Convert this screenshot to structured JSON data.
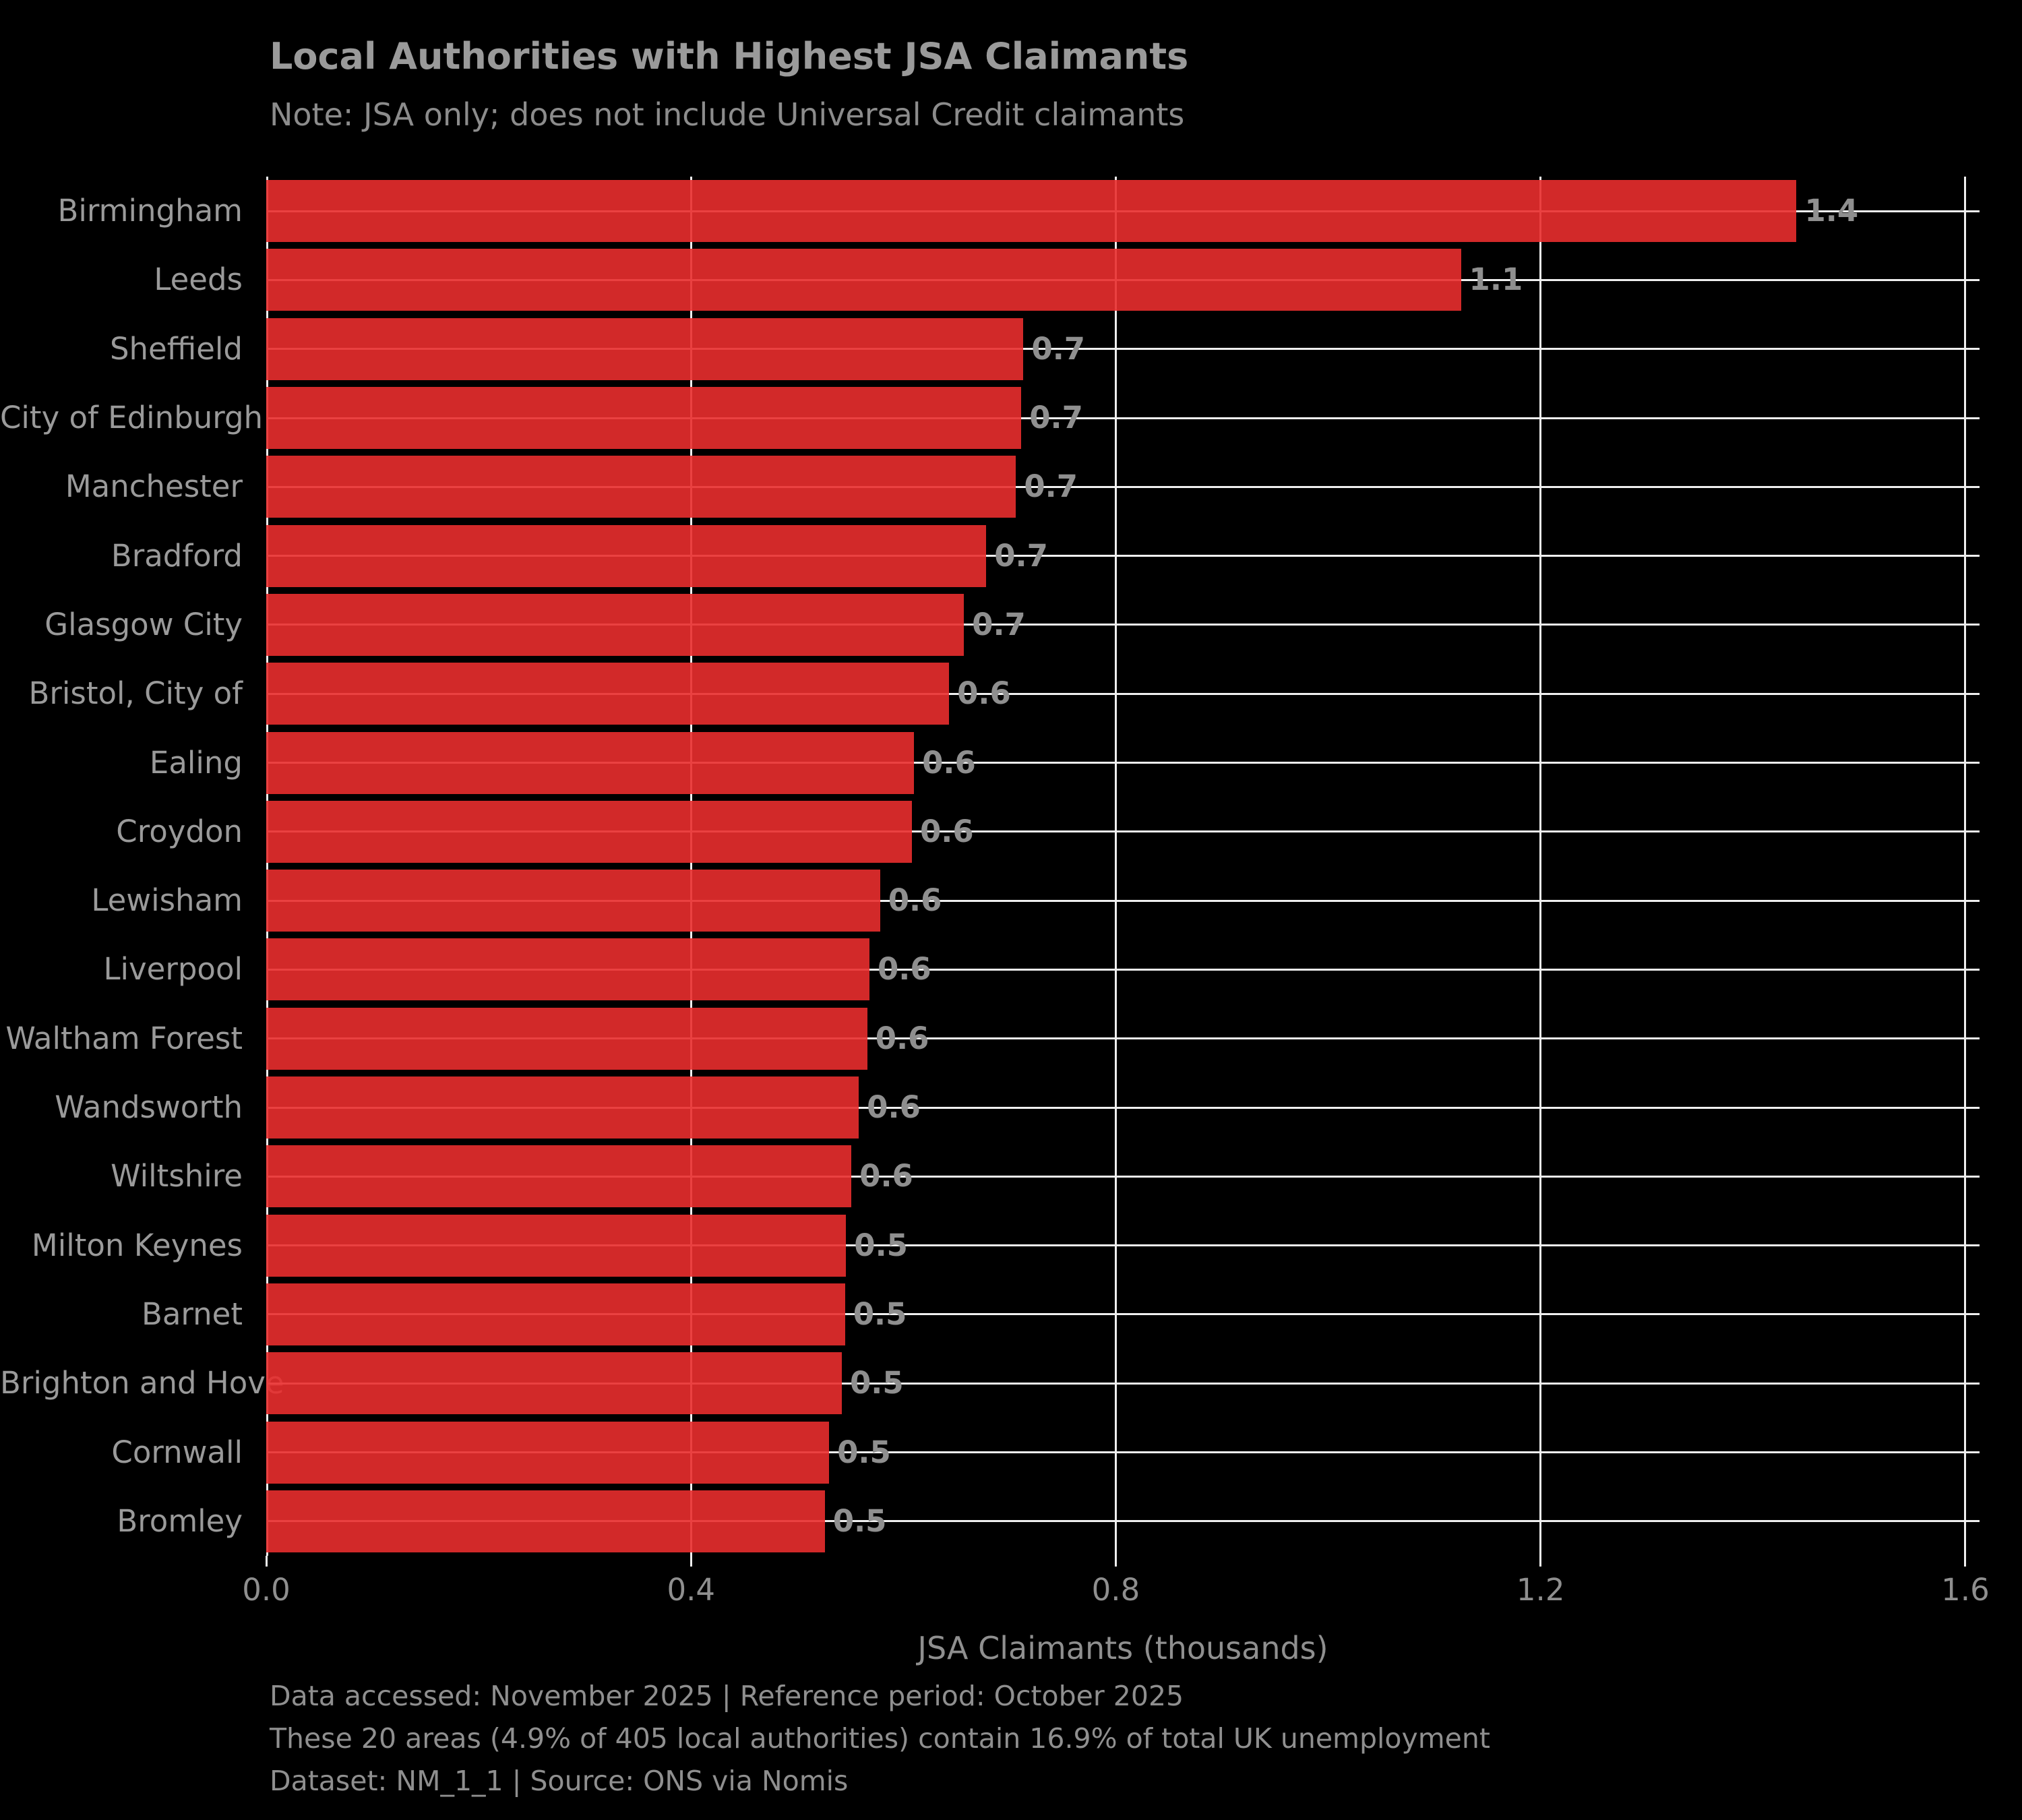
{
  "title": "Local Authorities with Highest JSA Claimants",
  "subtitle": "Note: JSA only; does not include Universal Credit claimants",
  "chart_data": {
    "type": "bar",
    "orientation": "horizontal",
    "title": "Local Authorities with Highest JSA Claimants",
    "subtitle": "Note: JSA only; does not include Universal Credit claimants",
    "xlabel": "JSA Claimants (thousands)",
    "ylabel": "",
    "xlim": [
      0,
      1.6
    ],
    "grid": true,
    "categories": [
      "Birmingham",
      "Leeds",
      "Sheffield",
      "City of Edinburgh",
      "Manchester",
      "Bradford",
      "Glasgow City",
      "Bristol, City of",
      "Ealing",
      "Croydon",
      "Lewisham",
      "Liverpool",
      "Waltham Forest",
      "Wandsworth",
      "Wiltshire",
      "Milton Keynes",
      "Barnet",
      "Brighton and Hove",
      "Cornwall",
      "Bromley"
    ],
    "values": [
      1.441,
      1.125,
      0.713,
      0.711,
      0.706,
      0.678,
      0.657,
      0.643,
      0.61,
      0.608,
      0.578,
      0.568,
      0.566,
      0.558,
      0.551,
      0.546,
      0.545,
      0.542,
      0.53,
      0.526
    ],
    "bar_labels": [
      "1.4",
      "1.1",
      "0.7",
      "0.7",
      "0.7",
      "0.7",
      "0.7",
      "0.6",
      "0.6",
      "0.6",
      "0.6",
      "0.6",
      "0.6",
      "0.6",
      "0.6",
      "0.5",
      "0.5",
      "0.5",
      "0.5",
      "0.5"
    ],
    "xtick_values": [
      0.0,
      0.4,
      0.8,
      1.2,
      1.6
    ],
    "xtick_labels": [
      "0.0",
      "0.4",
      "0.8",
      "1.2",
      "1.6"
    ]
  },
  "footer": {
    "line1": "Data accessed: November 2025 | Reference period: October 2025",
    "line2": "These 20 areas (4.9% of 405 local authorities) contain 16.9% of total UK unemployment",
    "line3": "Dataset: NM_1_1 | Source: ONS via Nomis"
  },
  "colors": {
    "background": "#000000",
    "bar_fill": "#e92e2e",
    "bar_alpha": 0.9,
    "gridline": "#efefef",
    "title_text": "#9a9a9a",
    "subtitle_text": "#8c8c8c",
    "label_text": "#8f8f8f",
    "category_text": "#9a9a9a"
  }
}
